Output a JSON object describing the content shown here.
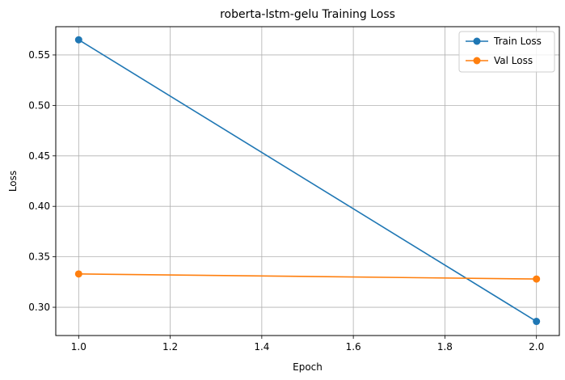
{
  "chart_data": {
    "type": "line",
    "title": "roberta-lstm-gelu Training Loss",
    "xlabel": "Epoch",
    "ylabel": "Loss",
    "x": [
      1.0,
      2.0
    ],
    "xlim": [
      0.95,
      2.05
    ],
    "ylim": [
      0.272,
      0.578
    ],
    "xticks": [
      "1.0",
      "1.2",
      "1.4",
      "1.6",
      "1.8",
      "2.0"
    ],
    "yticks": [
      "0.30",
      "0.35",
      "0.40",
      "0.45",
      "0.50",
      "0.55"
    ],
    "grid": true,
    "legend_position": "top-right",
    "series": [
      {
        "name": "Train Loss",
        "values": [
          0.565,
          0.286
        ],
        "color": "#1f77b4",
        "marker": "circle"
      },
      {
        "name": "Val Loss",
        "values": [
          0.333,
          0.328
        ],
        "color": "#ff7f0e",
        "marker": "circle"
      }
    ]
  }
}
